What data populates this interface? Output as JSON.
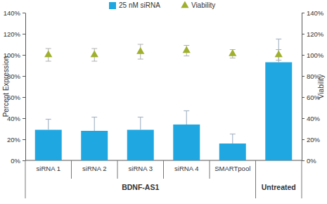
{
  "chart_data": {
    "type": "bar",
    "categories": [
      "siRNA 1",
      "siRNA 2",
      "siRNA 3",
      "siRNA 4",
      "SMARTpool",
      null
    ],
    "group_labels": [
      "BDNF-AS1",
      "BDNF-AS1",
      "BDNF-AS1",
      "BDNF-AS1",
      "BDNF-AS1",
      "Untreated"
    ],
    "y_label": "Percent Expression",
    "y2_label": "Viability",
    "legend": "top",
    "ylim": [
      0,
      140
    ],
    "yticks": [
      {
        "value": 0,
        "label": "0%"
      },
      {
        "value": 20,
        "label": "20%"
      },
      {
        "value": 40,
        "label": "40%"
      },
      {
        "value": 60,
        "label": "60%"
      },
      {
        "value": 80,
        "label": "80%"
      },
      {
        "value": 100,
        "label": "100%"
      },
      {
        "value": 120,
        "label": "120%"
      },
      {
        "value": 140,
        "label": "140%"
      }
    ],
    "y2lim": [
      0,
      140
    ],
    "y2ticks": [
      {
        "value": 0,
        "label": "0%"
      },
      {
        "value": 20,
        "label": "20%"
      },
      {
        "value": 40,
        "label": "40%"
      },
      {
        "value": 60,
        "label": "60%"
      },
      {
        "value": 80,
        "label": "80%"
      },
      {
        "value": 100,
        "label": "100%"
      },
      {
        "value": 120,
        "label": "120%"
      },
      {
        "value": 140,
        "label": "140%"
      }
    ],
    "series": [
      {
        "name": "25 nM siRNA",
        "type": "bar",
        "color": "#1ea7e1",
        "values": [
          29,
          28,
          29,
          34,
          16,
          93
        ],
        "errors": [
          10,
          13,
          12,
          13,
          9,
          22
        ]
      },
      {
        "name": "Viability",
        "type": "scatter",
        "marker": "triangle",
        "axis": "y2",
        "color": "#9fb02c",
        "values": [
          100,
          100,
          103,
          104,
          101,
          100
        ],
        "errors": [
          6,
          6,
          7,
          5,
          4,
          5
        ]
      }
    ]
  }
}
